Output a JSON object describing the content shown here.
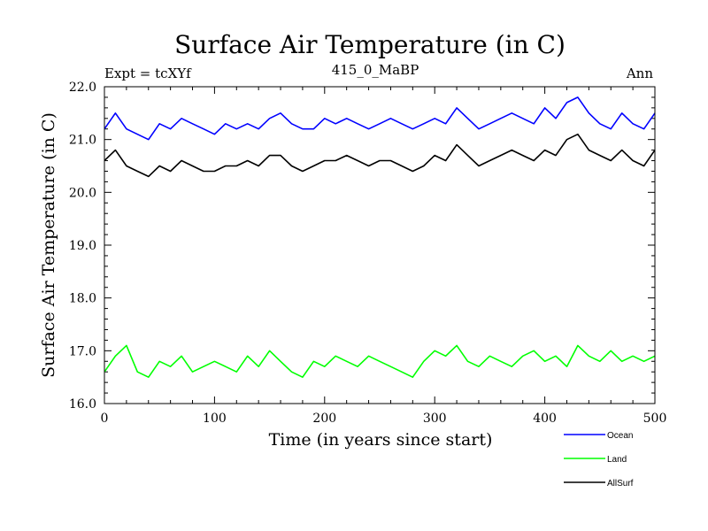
{
  "chart_data": {
    "type": "line",
    "title": "Surface Air Temperature (in C)",
    "subtitle_left": "Expt = tcXYf",
    "subtitle_center": "415_0_MaBP",
    "subtitle_right": "Ann",
    "xlabel": "Time (in years since start)",
    "ylabel": "Surface Air Temperature (in C)",
    "xlim": [
      0,
      500
    ],
    "ylim": [
      16.0,
      22.0
    ],
    "xticks": [
      0,
      100,
      200,
      300,
      400,
      500
    ],
    "xtick_labels": [
      "0",
      "100",
      "200",
      "300",
      "400",
      "500"
    ],
    "yticks": [
      16.0,
      17.0,
      18.0,
      19.0,
      20.0,
      21.0,
      22.0
    ],
    "ytick_labels": [
      "16.0",
      "17.0",
      "18.0",
      "19.0",
      "20.0",
      "21.0",
      "22.0"
    ],
    "grid": false,
    "legend_position": "bottom-right",
    "x": [
      0,
      10,
      20,
      30,
      40,
      50,
      60,
      70,
      80,
      90,
      100,
      110,
      120,
      130,
      140,
      150,
      160,
      170,
      180,
      190,
      200,
      210,
      220,
      230,
      240,
      250,
      260,
      270,
      280,
      290,
      300,
      310,
      320,
      330,
      340,
      350,
      360,
      370,
      380,
      390,
      400,
      410,
      420,
      430,
      440,
      450,
      460,
      470,
      480,
      490,
      500
    ],
    "series": [
      {
        "name": "Ocean",
        "color": "#0000ff",
        "values": [
          21.2,
          21.5,
          21.2,
          21.1,
          21.0,
          21.3,
          21.2,
          21.4,
          21.3,
          21.2,
          21.1,
          21.3,
          21.2,
          21.3,
          21.2,
          21.4,
          21.5,
          21.3,
          21.2,
          21.2,
          21.4,
          21.3,
          21.4,
          21.3,
          21.2,
          21.3,
          21.4,
          21.3,
          21.2,
          21.3,
          21.4,
          21.3,
          21.6,
          21.4,
          21.2,
          21.3,
          21.4,
          21.5,
          21.4,
          21.3,
          21.6,
          21.4,
          21.7,
          21.8,
          21.5,
          21.3,
          21.2,
          21.5,
          21.3,
          21.2,
          21.5
        ]
      },
      {
        "name": "Land",
        "color": "#00ff00",
        "values": [
          16.6,
          16.9,
          17.1,
          16.6,
          16.5,
          16.8,
          16.7,
          16.9,
          16.6,
          16.7,
          16.8,
          16.7,
          16.6,
          16.9,
          16.7,
          17.0,
          16.8,
          16.6,
          16.5,
          16.8,
          16.7,
          16.9,
          16.8,
          16.7,
          16.9,
          16.8,
          16.7,
          16.6,
          16.5,
          16.8,
          17.0,
          16.9,
          17.1,
          16.8,
          16.7,
          16.9,
          16.8,
          16.7,
          16.9,
          17.0,
          16.8,
          16.9,
          16.7,
          17.1,
          16.9,
          16.8,
          17.0,
          16.8,
          16.9,
          16.8,
          16.9
        ]
      },
      {
        "name": "AllSurf",
        "color": "#000000",
        "values": [
          20.6,
          20.8,
          20.5,
          20.4,
          20.3,
          20.5,
          20.4,
          20.6,
          20.5,
          20.4,
          20.4,
          20.5,
          20.5,
          20.6,
          20.5,
          20.7,
          20.7,
          20.5,
          20.4,
          20.5,
          20.6,
          20.6,
          20.7,
          20.6,
          20.5,
          20.6,
          20.6,
          20.5,
          20.4,
          20.5,
          20.7,
          20.6,
          20.9,
          20.7,
          20.5,
          20.6,
          20.7,
          20.8,
          20.7,
          20.6,
          20.8,
          20.7,
          21.0,
          21.1,
          20.8,
          20.7,
          20.6,
          20.8,
          20.6,
          20.5,
          20.8
        ]
      }
    ]
  }
}
